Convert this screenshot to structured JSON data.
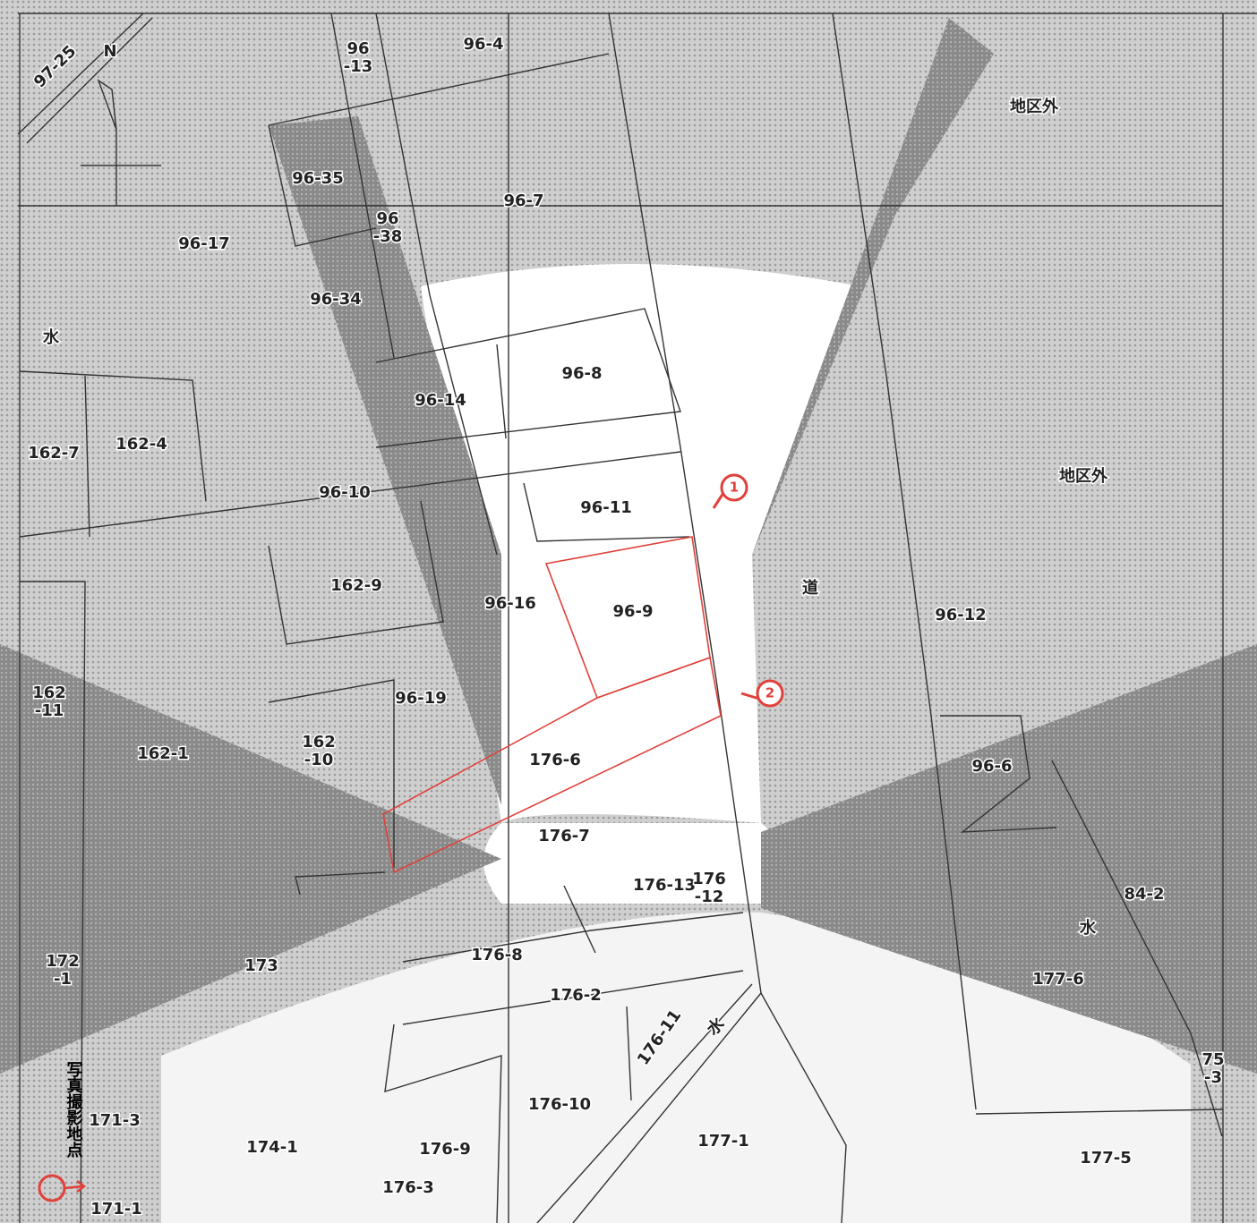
{
  "map": {
    "labels": [
      "97-25",
      "96-4",
      [
        "96",
        "-13"
      ],
      "地区外",
      "96-35",
      "96-7",
      [
        "96",
        "-38"
      ],
      "96-17",
      "96-34",
      "水",
      "96-8",
      "96-14",
      "162-7",
      "162-4",
      "地区外",
      "96-10",
      "96-11",
      "162-9",
      "96-16",
      "96-9",
      "道",
      "96-12",
      [
        "162",
        "-11"
      ],
      "96-19",
      "162-1",
      [
        "162",
        "-10"
      ],
      "176-6",
      "96-6",
      "176-7",
      "176-13",
      [
        "176",
        "-12"
      ],
      "84-2",
      "水",
      [
        "172",
        "-1"
      ],
      "173",
      "176-8",
      "177-6",
      "176-2",
      "176-11",
      "水",
      [
        "75",
        "-3"
      ],
      "176-10",
      "171-3",
      "174-1",
      "176-9",
      "177-1",
      "177-5",
      "176-3",
      "171-1",
      "N"
    ],
    "photo_points": [
      "1",
      "2"
    ],
    "legend": "写真撮影地点"
  }
}
